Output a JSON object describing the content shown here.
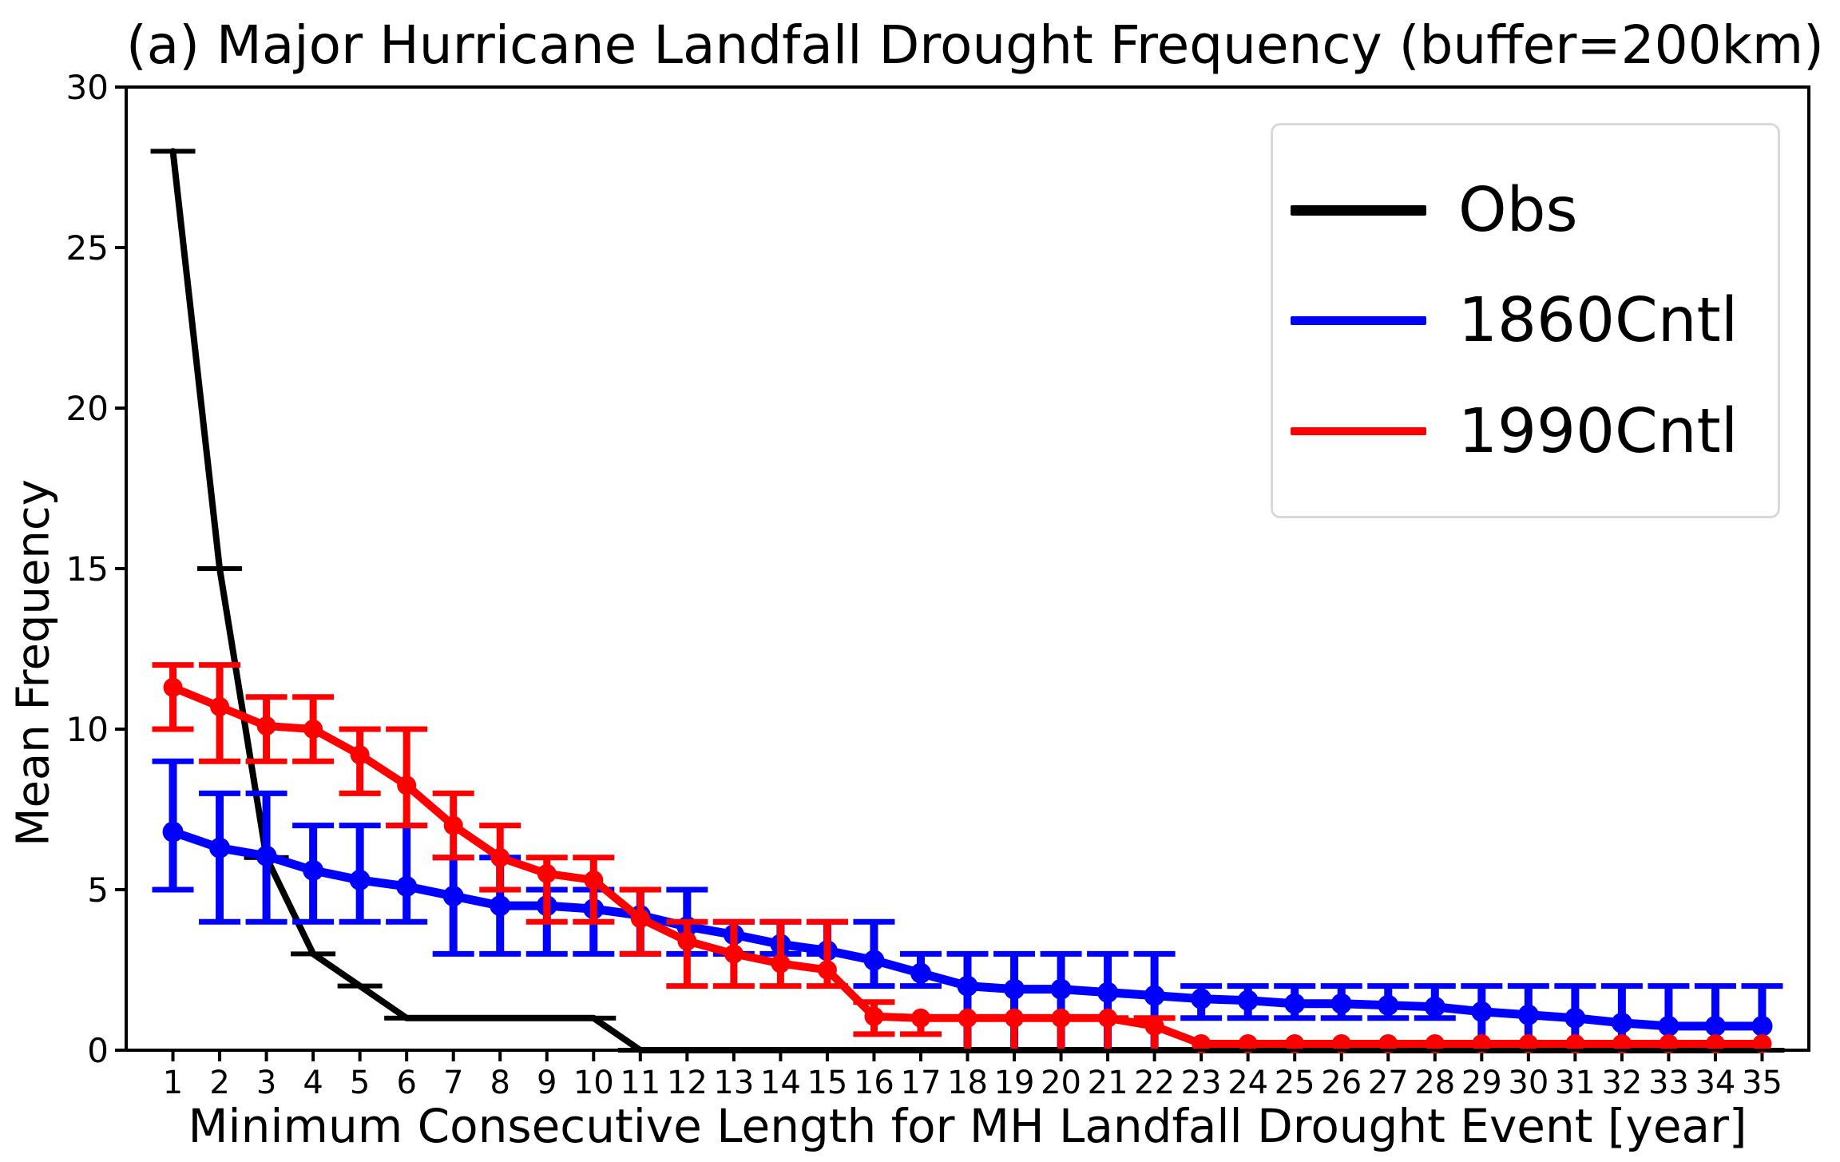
{
  "figure": {
    "background": "#ffffff"
  },
  "chart_data": {
    "type": "line",
    "title": "(a) Major Hurricane Landfall Drought Frequency (buffer=200km)",
    "xlabel": "Minimum Consecutive Length for MH Landfall Drought Event [year]",
    "ylabel": "Mean Frequency",
    "xlim": [
      0,
      36
    ],
    "ylim": [
      0,
      30
    ],
    "grid": false,
    "legend_position": "upper right",
    "x_ticks": [
      1,
      2,
      3,
      4,
      5,
      6,
      7,
      8,
      9,
      10,
      11,
      12,
      13,
      14,
      15,
      16,
      17,
      18,
      19,
      20,
      21,
      22,
      23,
      24,
      25,
      26,
      27,
      28,
      29,
      30,
      31,
      32,
      33,
      34,
      35
    ],
    "y_ticks": [
      0,
      5,
      10,
      15,
      20,
      25,
      30
    ],
    "x": [
      1,
      2,
      3,
      4,
      5,
      6,
      7,
      8,
      9,
      10,
      11,
      12,
      13,
      14,
      15,
      16,
      17,
      18,
      19,
      20,
      21,
      22,
      23,
      24,
      25,
      26,
      27,
      28,
      29,
      30,
      31,
      32,
      33,
      34,
      35
    ],
    "series": [
      {
        "name": "Obs",
        "color": "#000000",
        "linewidth": 8,
        "marker": "hline",
        "marker_width": 56,
        "marker_height": 6,
        "values": [
          28,
          15,
          6,
          3,
          2,
          1,
          1,
          1,
          1,
          1,
          0,
          0,
          0,
          0,
          0,
          0,
          0,
          0,
          0,
          0,
          0,
          0,
          0,
          0,
          0,
          0,
          0,
          0,
          0,
          0,
          0,
          0,
          0,
          0,
          0
        ],
        "err_lo": null,
        "err_hi": null
      },
      {
        "name": "1860Cntl",
        "color": "#0000ff",
        "linewidth": 11,
        "marker": "circle",
        "marker_radius": 13,
        "err_barwidth": 10,
        "values": [
          6.8,
          6.3,
          6.05,
          5.6,
          5.3,
          5.1,
          4.8,
          4.5,
          4.5,
          4.4,
          4.2,
          3.85,
          3.6,
          3.3,
          3.1,
          2.8,
          2.4,
          2.0,
          1.9,
          1.9,
          1.8,
          1.7,
          1.6,
          1.55,
          1.45,
          1.45,
          1.4,
          1.35,
          1.2,
          1.1,
          1.0,
          0.85,
          0.75,
          0.75,
          0.75
        ],
        "err_lo": [
          5,
          4,
          4,
          4,
          4,
          4,
          3,
          3,
          3,
          3,
          3,
          3,
          3,
          3,
          3,
          2,
          2,
          0,
          0,
          0,
          0,
          0,
          1,
          1,
          1,
          1,
          1,
          1,
          0,
          0,
          0,
          0,
          0,
          0,
          0
        ],
        "err_hi": [
          9,
          8,
          8,
          7,
          7,
          7,
          6,
          6,
          5,
          5,
          5,
          5,
          4,
          4,
          4,
          4,
          3,
          3,
          3,
          3,
          3,
          3,
          2,
          2,
          2,
          2,
          2,
          2,
          2,
          2,
          2,
          2,
          2,
          2,
          2
        ]
      },
      {
        "name": "1990Cntl",
        "color": "#ff0000",
        "linewidth": 10,
        "marker": "circle",
        "marker_radius": 12,
        "err_barwidth": 9,
        "values": [
          11.3,
          10.7,
          10.1,
          10.0,
          9.2,
          8.25,
          7.0,
          6.0,
          5.5,
          5.3,
          4.1,
          3.4,
          3.0,
          2.7,
          2.5,
          1.05,
          1.0,
          1.0,
          1.0,
          1.0,
          1.0,
          0.75,
          0.2,
          0.2,
          0.2,
          0.2,
          0.2,
          0.2,
          0.2,
          0.2,
          0.2,
          0.2,
          0.2,
          0.2,
          0.2
        ],
        "err_lo": [
          10,
          9,
          9,
          9,
          8,
          7,
          6,
          5,
          4,
          4,
          3,
          2,
          2,
          2,
          2,
          0.5,
          0.5,
          0,
          0,
          0,
          0,
          0,
          null,
          null,
          null,
          null,
          null,
          null,
          null,
          null,
          null,
          null,
          null,
          null,
          null
        ],
        "err_hi": [
          12,
          12,
          11,
          11,
          10,
          10,
          8,
          7,
          6,
          6,
          5,
          4,
          4,
          4,
          4,
          1.5,
          1.0,
          1.0,
          1.0,
          1.0,
          1.0,
          1.0,
          null,
          null,
          null,
          null,
          null,
          null,
          null,
          null,
          null,
          null,
          null,
          null,
          null
        ]
      }
    ],
    "legend": [
      {
        "label": "Obs",
        "color": "#000000",
        "linewidth": 13
      },
      {
        "label": "1860Cntl",
        "color": "#0000ff",
        "linewidth": 11
      },
      {
        "label": "1990Cntl",
        "color": "#ff0000",
        "linewidth": 10
      }
    ],
    "axis": {
      "color": "#000000",
      "spine_width": 4,
      "tick_length": 14,
      "tick_width": 4,
      "x_tick_fontsize": 40,
      "y_tick_fontsize": 42
    }
  }
}
